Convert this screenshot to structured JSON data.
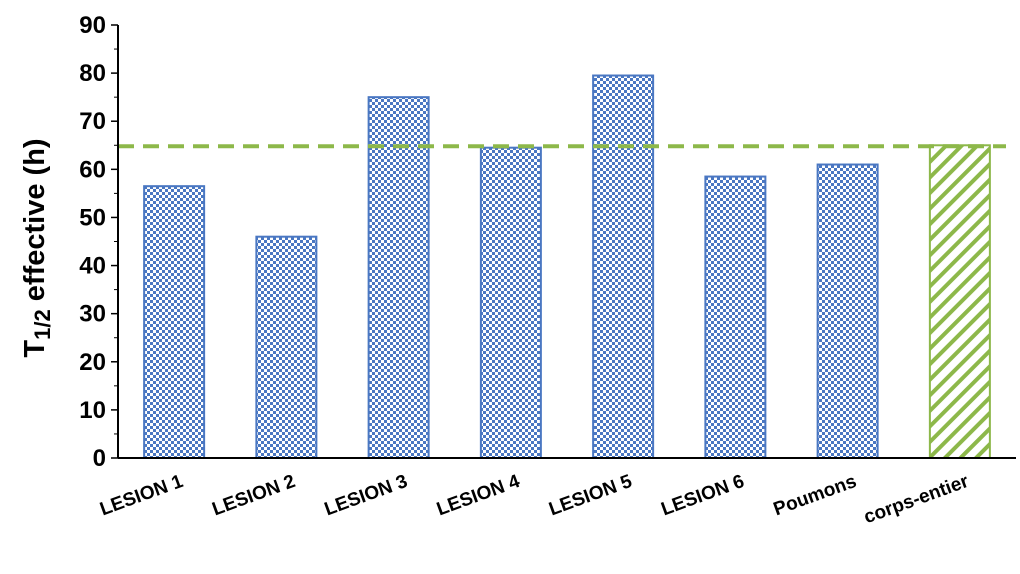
{
  "chart_data": {
    "type": "bar",
    "title": "",
    "xlabel": "",
    "ylabel": {
      "prefix": "T",
      "subscript": "1/2",
      "suffix": " effective (h)"
    },
    "ylim": [
      0,
      90
    ],
    "yticks": [
      0,
      10,
      20,
      30,
      40,
      50,
      60,
      70,
      80,
      90
    ],
    "categories": [
      "LESION 1",
      "LESION 2",
      "LESION 3",
      "LESION 4",
      "LESION 5",
      "LESION 6",
      "Poumons",
      "corps-entier"
    ],
    "values": [
      56.5,
      46,
      75,
      64.5,
      79.5,
      58.5,
      61,
      65
    ],
    "bar_styles": [
      "dotted",
      "dotted",
      "dotted",
      "dotted",
      "dotted",
      "dotted",
      "dotted",
      "hatched"
    ],
    "reference_line": {
      "value": 64.8,
      "style": "dashed"
    },
    "colors": {
      "lesion_bars": "#4a77c2",
      "whole_body_bar": "#8db84a",
      "reference_line": "#8db84a"
    },
    "grid": false,
    "legend": "none"
  }
}
